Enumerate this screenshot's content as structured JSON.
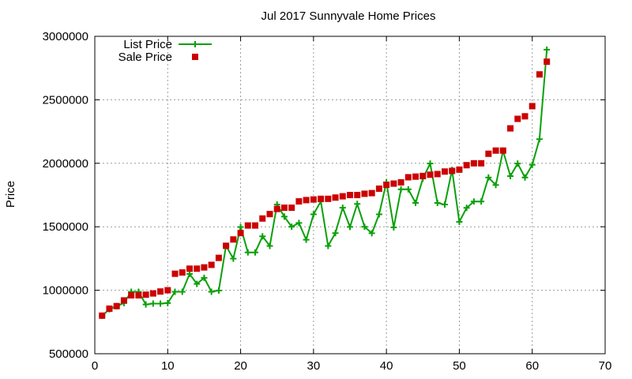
{
  "chart_data": {
    "type": "line",
    "title": "Jul 2017 Sunnyvale Home Prices",
    "xlabel": "",
    "ylabel": "Price",
    "xlim": [
      0,
      70
    ],
    "ylim": [
      500000,
      3000000
    ],
    "xticks": [
      0,
      10,
      20,
      30,
      40,
      50,
      60,
      70
    ],
    "yticks": [
      500000,
      1000000,
      1500000,
      2000000,
      2500000,
      3000000
    ],
    "grid": true,
    "legend_position": "top-left",
    "series": [
      {
        "name": "List Price",
        "style": "line+points",
        "marker": "plus",
        "color": "#0aa00a",
        "x": [
          1,
          2,
          3,
          4,
          5,
          6,
          7,
          8,
          9,
          10,
          11,
          12,
          13,
          14,
          15,
          16,
          17,
          18,
          19,
          20,
          21,
          22,
          23,
          24,
          25,
          26,
          27,
          28,
          29,
          30,
          31,
          32,
          33,
          34,
          35,
          36,
          37,
          38,
          39,
          40,
          41,
          42,
          43,
          44,
          45,
          46,
          47,
          48,
          49,
          50,
          51,
          52,
          53,
          54,
          55,
          56,
          57,
          58,
          59,
          60,
          61,
          62
        ],
        "values": [
          799000,
          850000,
          875000,
          899000,
          988000,
          988000,
          888000,
          895000,
          895000,
          899000,
          988000,
          988000,
          1129000,
          1050000,
          1098000,
          988000,
          998000,
          1350000,
          1249000,
          1498000,
          1298000,
          1298000,
          1425000,
          1349000,
          1675000,
          1580000,
          1500000,
          1530000,
          1398000,
          1598000,
          1700000,
          1349000,
          1450000,
          1650000,
          1499000,
          1680000,
          1500000,
          1449000,
          1598000,
          1850000,
          1495000,
          1795000,
          1795000,
          1688000,
          1880000,
          1998000,
          1688000,
          1675000,
          1948000,
          1539000,
          1649000,
          1699000,
          1699000,
          1888000,
          1829000,
          2099000,
          1899000,
          1998000,
          1888000,
          1988000,
          2190000,
          2895000
        ]
      },
      {
        "name": "Sale Price",
        "style": "points",
        "marker": "square",
        "color": "#cc0000",
        "x": [
          1,
          2,
          3,
          4,
          5,
          6,
          7,
          8,
          9,
          10,
          11,
          12,
          13,
          14,
          15,
          16,
          17,
          18,
          19,
          20,
          21,
          22,
          23,
          24,
          25,
          26,
          27,
          28,
          29,
          30,
          31,
          32,
          33,
          34,
          35,
          36,
          37,
          38,
          39,
          40,
          41,
          42,
          43,
          44,
          45,
          46,
          47,
          48,
          49,
          50,
          51,
          52,
          53,
          54,
          55,
          56,
          57,
          58,
          59,
          60,
          61,
          62
        ],
        "values": [
          800000,
          855000,
          875000,
          920000,
          960000,
          960000,
          965000,
          975000,
          990000,
          1000000,
          1130000,
          1140000,
          1170000,
          1170000,
          1180000,
          1200000,
          1255000,
          1350000,
          1400000,
          1450000,
          1510000,
          1510000,
          1565000,
          1600000,
          1640000,
          1650000,
          1650000,
          1700000,
          1710000,
          1715000,
          1720000,
          1720000,
          1730000,
          1740000,
          1750000,
          1750000,
          1760000,
          1765000,
          1800000,
          1830000,
          1840000,
          1850000,
          1890000,
          1895000,
          1900000,
          1910000,
          1915000,
          1935000,
          1940000,
          1950000,
          1985000,
          2000000,
          2000000,
          2075000,
          2100000,
          2100000,
          2275000,
          2350000,
          2370000,
          2450000,
          2700000,
          2800000
        ]
      }
    ]
  }
}
